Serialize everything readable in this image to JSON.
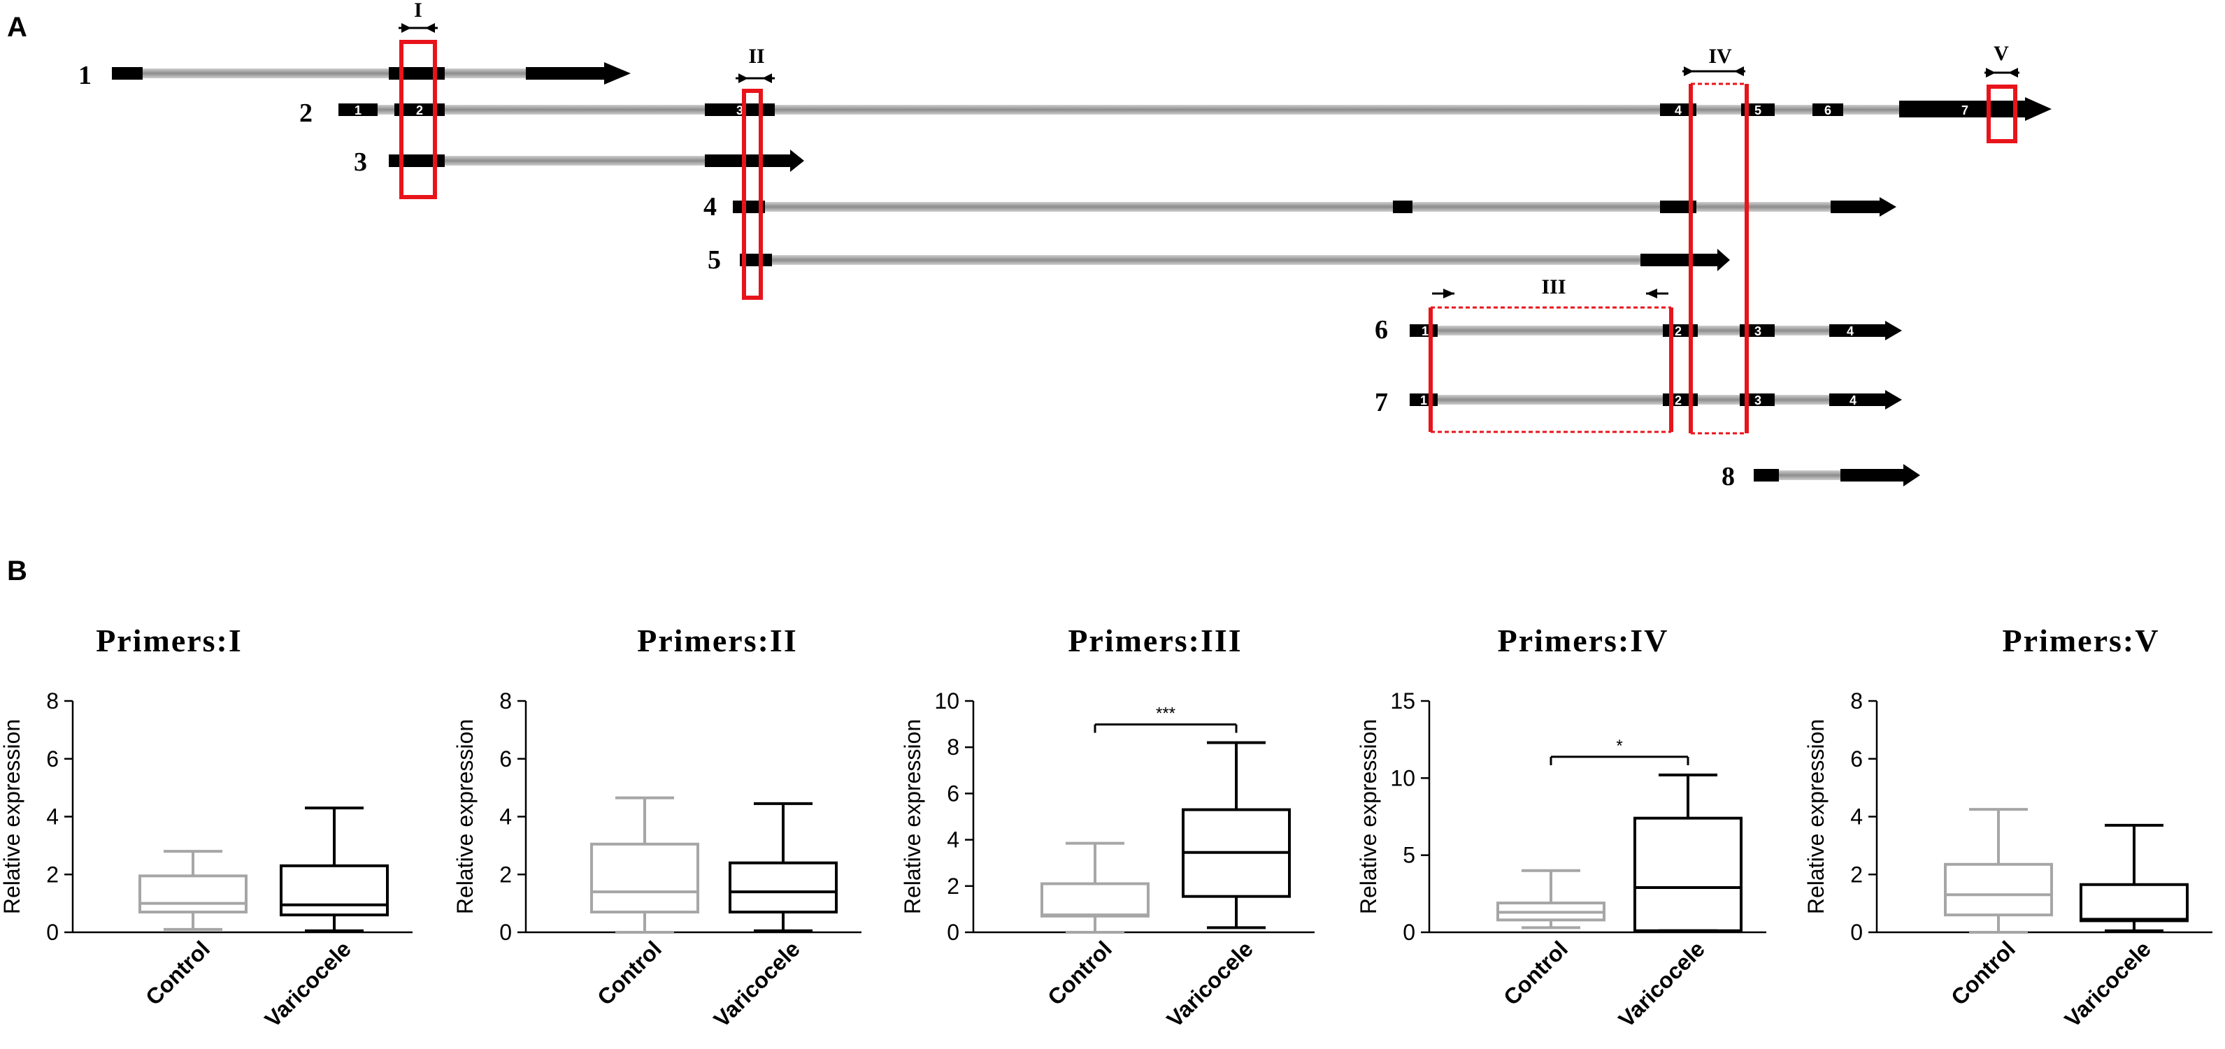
{
  "figure": {
    "panel_a_label": "A",
    "panel_b_label": "B"
  },
  "colors": {
    "intron": "#a6a6a6",
    "exon": "#000000",
    "primer_box": "#e8141b",
    "control": "#a6a6a6",
    "varicocele": "#000000"
  },
  "transcripts": {
    "labels": [
      "1",
      "2",
      "3",
      "4",
      "5",
      "6",
      "7",
      "8"
    ],
    "exon_numbers_t2": [
      "1",
      "2",
      "3",
      "4",
      "5",
      "6",
      "7"
    ],
    "exon_numbers_t6": [
      "1",
      "2",
      "3",
      "4"
    ],
    "exon_numbers_t7": [
      "1",
      "2",
      "3",
      "4"
    ]
  },
  "primer_regions": [
    "I",
    "II",
    "III",
    "IV",
    "V"
  ],
  "chart_data": [
    {
      "type": "boxplot",
      "title": "Primers:I",
      "ylabel": "Relative expression",
      "xlabel": "",
      "ylim": [
        0,
        8
      ],
      "yticks": [
        "0",
        "2",
        "4",
        "6",
        "8"
      ],
      "categories": [
        "Control",
        "Varicocele"
      ],
      "boxes": [
        {
          "name": "Control",
          "min": 0.1,
          "q1": 0.7,
          "median": 1.0,
          "q3": 1.95,
          "max": 2.8
        },
        {
          "name": "Varicocele",
          "min": 0.05,
          "q1": 0.6,
          "median": 0.95,
          "q3": 2.3,
          "max": 4.3
        }
      ],
      "significance": ""
    },
    {
      "type": "boxplot",
      "title": "Primers:II",
      "ylabel": "Relative expression",
      "xlabel": "",
      "ylim": [
        0,
        8
      ],
      "yticks": [
        "0",
        "2",
        "4",
        "6",
        "8"
      ],
      "categories": [
        "Control",
        "Varicocele"
      ],
      "boxes": [
        {
          "name": "Control",
          "min": 0.0,
          "q1": 0.7,
          "median": 1.4,
          "q3": 3.05,
          "max": 4.65
        },
        {
          "name": "Varicocele",
          "min": 0.05,
          "q1": 0.7,
          "median": 1.4,
          "q3": 2.4,
          "max": 4.45
        }
      ],
      "significance": ""
    },
    {
      "type": "boxplot",
      "title": "Primers:III",
      "ylabel": "Relative expression",
      "xlabel": "",
      "ylim": [
        0,
        10
      ],
      "yticks": [
        "0",
        "2",
        "4",
        "6",
        "8",
        "10"
      ],
      "categories": [
        "Control",
        "Varicocele"
      ],
      "boxes": [
        {
          "name": "Control",
          "min": 0.0,
          "q1": 0.7,
          "median": 0.75,
          "q3": 2.1,
          "max": 3.85
        },
        {
          "name": "Varicocele",
          "min": 0.2,
          "q1": 1.55,
          "median": 3.45,
          "q3": 5.3,
          "max": 8.2
        }
      ],
      "significance": "***"
    },
    {
      "type": "boxplot",
      "title": "Primers:IV",
      "ylabel": "Relative expression",
      "xlabel": "",
      "ylim": [
        0,
        15
      ],
      "yticks": [
        "0",
        "5",
        "10",
        "15"
      ],
      "categories": [
        "Control",
        "Varicocele"
      ],
      "boxes": [
        {
          "name": "Control",
          "min": 0.3,
          "q1": 0.8,
          "median": 1.3,
          "q3": 1.9,
          "max": 4.0
        },
        {
          "name": "Varicocele",
          "min": 0.1,
          "q1": 0.1,
          "median": 2.9,
          "q3": 7.4,
          "max": 10.2
        }
      ],
      "significance": "*"
    },
    {
      "type": "boxplot",
      "title": "Primers:V",
      "ylabel": "Relative expression",
      "xlabel": "",
      "ylim": [
        0,
        8
      ],
      "yticks": [
        "0",
        "2",
        "4",
        "6",
        "8"
      ],
      "categories": [
        "Control",
        "Varicocele"
      ],
      "boxes": [
        {
          "name": "Control",
          "min": 0.0,
          "q1": 0.6,
          "median": 1.3,
          "q3": 2.35,
          "max": 4.25
        },
        {
          "name": "Varicocele",
          "min": 0.05,
          "q1": 0.4,
          "median": 0.45,
          "q3": 1.65,
          "max": 3.7
        }
      ],
      "significance": ""
    }
  ]
}
